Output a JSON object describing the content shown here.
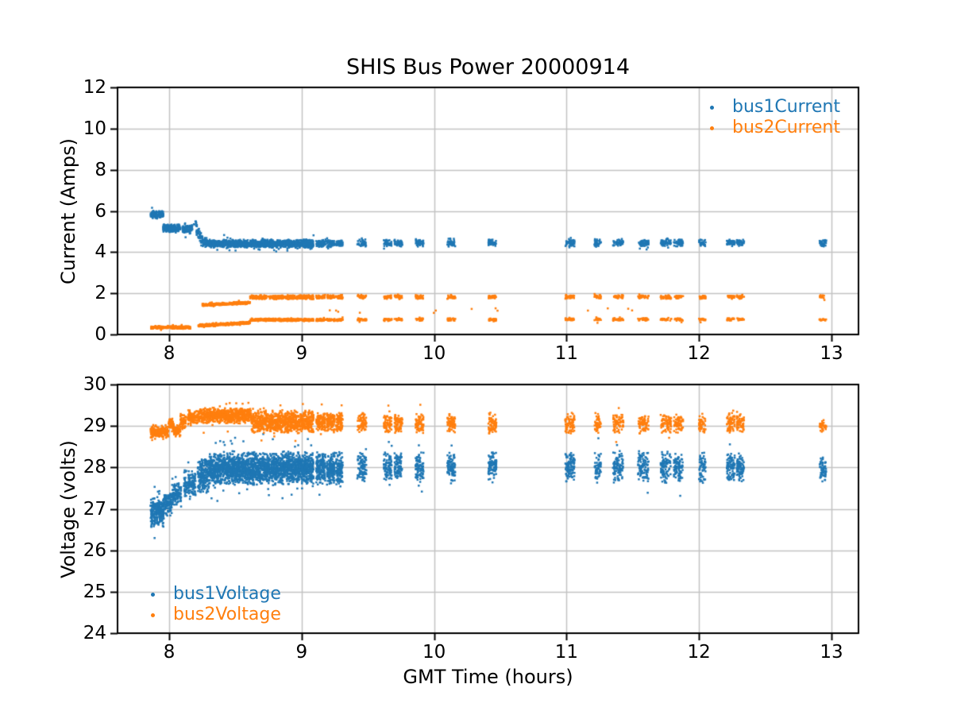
{
  "figure": {
    "background": "#ffffff"
  },
  "style": {
    "grid_color": "#c3c3c3",
    "spine_color": "#000000",
    "tick_color": "#000000",
    "text_color": "#000000",
    "series_blue": "#1f77b4",
    "series_orange": "#ff7f0e"
  },
  "chart_data": [
    {
      "type": "scatter",
      "title": "SHIS Bus Power 20000914",
      "ylabel": "Current (Amps)",
      "xlabel": "",
      "xlim": [
        7.61,
        13.204
      ],
      "ylim": [
        0,
        12
      ],
      "xticks": [
        8,
        9,
        10,
        11,
        12,
        13
      ],
      "xtick_labels": [
        "8",
        "9",
        "10",
        "11",
        "12",
        "13"
      ],
      "yticks": [
        0,
        2,
        4,
        6,
        8,
        10,
        12
      ],
      "ytick_labels": [
        "0",
        "2",
        "4",
        "6",
        "8",
        "10",
        "12"
      ],
      "grid": true,
      "legend": {
        "location": "upper right",
        "entries": [
          {
            "label": "bus1Current",
            "color": "#1f77b4"
          },
          {
            "label": "bus2Current",
            "color": "#ff7f0e"
          }
        ]
      },
      "series": [
        {
          "name": "bus1Current",
          "color": "#1f77b4",
          "marker": "point",
          "segments": [
            [
              7.86,
              7.955,
              5.62,
              6.02,
              160
            ],
            [
              7.955,
              8.085,
              4.93,
              5.38,
              200
            ],
            [
              8.1,
              8.175,
              4.9,
              5.33,
              90
            ],
            [
              8.18,
              8.21,
              5.25,
              5.5,
              8
            ],
            [
              8.205,
              8.24,
              4.75,
              5.35,
              40,
              4.45,
              5.0
            ],
            [
              8.24,
              8.27,
              4.25,
              4.8,
              30
            ],
            [
              8.27,
              9.09,
              4.2,
              4.62,
              1300
            ],
            [
              9.11,
              9.18,
              4.22,
              4.62,
              70
            ],
            [
              9.19,
              9.25,
              4.22,
              4.62,
              60
            ],
            [
              9.26,
              9.31,
              4.22,
              4.62,
              50
            ],
            [
              9.42,
              9.49,
              4.25,
              4.65,
              45
            ],
            [
              9.62,
              9.68,
              4.25,
              4.65,
              45
            ],
            [
              9.7,
              9.76,
              4.25,
              4.65,
              45
            ],
            [
              9.86,
              9.92,
              4.25,
              4.65,
              45
            ],
            [
              10.1,
              10.16,
              4.25,
              4.7,
              45
            ],
            [
              10.41,
              10.47,
              4.25,
              4.65,
              45
            ],
            [
              10.99,
              11.06,
              4.25,
              4.65,
              50
            ],
            [
              11.21,
              11.26,
              4.25,
              4.65,
              35
            ],
            [
              11.35,
              11.43,
              4.25,
              4.65,
              50
            ],
            [
              11.54,
              11.62,
              4.25,
              4.65,
              50
            ],
            [
              11.71,
              11.79,
              4.25,
              4.65,
              50
            ],
            [
              11.81,
              11.88,
              4.25,
              4.65,
              45
            ],
            [
              12.0,
              12.05,
              4.25,
              4.65,
              35
            ],
            [
              12.21,
              12.27,
              4.25,
              4.65,
              45
            ],
            [
              12.285,
              12.34,
              4.25,
              4.65,
              40
            ],
            [
              12.91,
              12.96,
              4.25,
              4.62,
              40
            ]
          ]
        },
        {
          "name": "bus2Current",
          "color": "#ff7f0e",
          "marker": "point",
          "segments": [
            [
              7.86,
              8.16,
              0.27,
              0.42,
              260
            ],
            [
              8.22,
              8.61,
              0.36,
              0.5,
              320,
              0.5,
              0.64
            ],
            [
              8.61,
              9.09,
              0.64,
              0.78,
              380
            ],
            [
              9.11,
              9.18,
              0.64,
              0.78,
              40
            ],
            [
              9.19,
              9.25,
              0.64,
              0.78,
              35
            ],
            [
              9.26,
              9.31,
              0.64,
              0.78,
              30
            ],
            [
              9.42,
              9.49,
              0.65,
              0.8,
              26
            ],
            [
              9.62,
              9.68,
              0.65,
              0.8,
              26
            ],
            [
              9.7,
              9.76,
              0.65,
              0.8,
              26
            ],
            [
              9.86,
              9.92,
              0.65,
              0.8,
              26
            ],
            [
              10.1,
              10.16,
              0.65,
              0.8,
              26
            ],
            [
              10.41,
              10.47,
              0.65,
              0.8,
              26
            ],
            [
              10.99,
              11.06,
              0.65,
              0.8,
              28
            ],
            [
              11.21,
              11.26,
              0.65,
              0.8,
              18
            ],
            [
              11.35,
              11.43,
              0.65,
              0.8,
              26
            ],
            [
              11.54,
              11.62,
              0.65,
              0.8,
              26
            ],
            [
              11.71,
              11.79,
              0.65,
              0.8,
              26
            ],
            [
              11.81,
              11.88,
              0.65,
              0.8,
              24
            ],
            [
              12.0,
              12.05,
              0.65,
              0.8,
              18
            ],
            [
              12.21,
              12.27,
              0.65,
              0.8,
              24
            ],
            [
              12.285,
              12.34,
              0.65,
              0.8,
              22
            ],
            [
              12.91,
              12.96,
              0.66,
              0.78,
              14
            ],
            [
              8.25,
              8.61,
              1.36,
              1.5,
              300,
              1.48,
              1.62
            ],
            [
              8.61,
              9.09,
              1.7,
              1.92,
              380
            ],
            [
              9.11,
              9.18,
              1.72,
              1.93,
              45
            ],
            [
              9.19,
              9.25,
              1.72,
              1.93,
              40
            ],
            [
              9.26,
              9.31,
              1.72,
              1.93,
              35
            ],
            [
              9.42,
              9.49,
              1.72,
              1.93,
              30
            ],
            [
              9.62,
              9.68,
              1.72,
              1.93,
              30
            ],
            [
              9.7,
              9.76,
              1.72,
              1.93,
              30
            ],
            [
              9.86,
              9.92,
              1.72,
              1.93,
              30
            ],
            [
              10.1,
              10.16,
              1.72,
              1.93,
              30
            ],
            [
              10.41,
              10.47,
              1.72,
              1.93,
              30
            ],
            [
              10.99,
              11.06,
              1.72,
              1.93,
              32
            ],
            [
              11.21,
              11.26,
              1.72,
              1.93,
              20
            ],
            [
              11.35,
              11.43,
              1.72,
              1.93,
              30
            ],
            [
              11.54,
              11.62,
              1.72,
              1.93,
              30
            ],
            [
              11.71,
              11.79,
              1.72,
              1.93,
              30
            ],
            [
              11.81,
              11.88,
              1.72,
              1.93,
              28
            ],
            [
              12.0,
              12.05,
              1.72,
              1.93,
              20
            ],
            [
              12.21,
              12.27,
              1.72,
              1.93,
              28
            ],
            [
              12.285,
              12.34,
              1.72,
              1.93,
              26
            ],
            [
              12.91,
              12.96,
              1.74,
              1.92,
              16
            ],
            [
              9.05,
              9.45,
              1.0,
              1.3,
              4
            ],
            [
              9.9,
              10.5,
              1.0,
              1.4,
              5
            ],
            [
              11.1,
              11.65,
              1.05,
              1.35,
              4
            ]
          ]
        }
      ]
    },
    {
      "type": "scatter",
      "title": "",
      "ylabel": "Voltage (volts)",
      "xlabel": "GMT Time (hours)",
      "xlim": [
        7.61,
        13.204
      ],
      "ylim": [
        24,
        30
      ],
      "xticks": [
        8,
        9,
        10,
        11,
        12,
        13
      ],
      "xtick_labels": [
        "8",
        "9",
        "10",
        "11",
        "12",
        "13"
      ],
      "yticks": [
        24,
        25,
        26,
        27,
        28,
        29,
        30
      ],
      "ytick_labels": [
        "24",
        "25",
        "26",
        "27",
        "28",
        "29",
        "30"
      ],
      "grid": true,
      "legend": {
        "location": "lower left",
        "entries": [
          {
            "label": "bus1Voltage",
            "color": "#1f77b4"
          },
          {
            "label": "bus2Voltage",
            "color": "#ff7f0e"
          }
        ]
      },
      "series": [
        {
          "name": "bus1Voltage",
          "color": "#1f77b4",
          "marker": "point",
          "segments": [
            [
              7.86,
              7.96,
              26.55,
              27.3,
              260
            ],
            [
              7.96,
              8.02,
              26.8,
              27.4,
              100
            ],
            [
              8.02,
              8.09,
              27.05,
              27.65,
              130
            ],
            [
              8.11,
              8.2,
              27.25,
              27.95,
              140
            ],
            [
              8.215,
              8.3,
              27.3,
              28.3,
              200
            ],
            [
              8.3,
              9.09,
              27.55,
              28.4,
              2200
            ],
            [
              9.11,
              9.18,
              27.55,
              28.4,
              170
            ],
            [
              9.19,
              9.25,
              27.55,
              28.4,
              150
            ],
            [
              9.26,
              9.31,
              27.55,
              28.4,
              120
            ],
            [
              9.42,
              9.49,
              27.6,
              28.4,
              90
            ],
            [
              9.62,
              9.68,
              27.6,
              28.4,
              90
            ],
            [
              9.7,
              9.76,
              27.6,
              28.4,
              90
            ],
            [
              9.86,
              9.92,
              27.6,
              28.4,
              90
            ],
            [
              10.1,
              10.16,
              27.6,
              28.4,
              90
            ],
            [
              10.41,
              10.47,
              27.6,
              28.4,
              90
            ],
            [
              10.99,
              11.06,
              27.6,
              28.4,
              100
            ],
            [
              11.21,
              11.26,
              27.6,
              28.4,
              60
            ],
            [
              11.35,
              11.43,
              27.6,
              28.4,
              95
            ],
            [
              11.54,
              11.62,
              27.6,
              28.4,
              95
            ],
            [
              11.71,
              11.79,
              27.6,
              28.4,
              95
            ],
            [
              11.81,
              11.88,
              27.6,
              28.4,
              85
            ],
            [
              12.0,
              12.05,
              27.6,
              28.4,
              60
            ],
            [
              12.21,
              12.27,
              27.6,
              28.4,
              85
            ],
            [
              12.285,
              12.34,
              27.6,
              28.4,
              80
            ],
            [
              12.91,
              12.96,
              27.6,
              28.3,
              60
            ]
          ]
        },
        {
          "name": "bus2Voltage",
          "color": "#ff7f0e",
          "marker": "point",
          "segments": [
            [
              7.86,
              7.995,
              28.7,
              29.0,
              200
            ],
            [
              7.995,
              8.035,
              28.85,
              29.25,
              60
            ],
            [
              8.035,
              8.085,
              28.72,
              29.05,
              70
            ],
            [
              8.085,
              8.125,
              28.9,
              29.3,
              60
            ],
            [
              8.14,
              8.23,
              29.0,
              29.4,
              110
            ],
            [
              8.23,
              8.62,
              29.05,
              29.45,
              700
            ],
            [
              8.62,
              9.09,
              28.82,
              29.38,
              900
            ],
            [
              9.11,
              9.18,
              28.85,
              29.35,
              120
            ],
            [
              9.19,
              9.25,
              28.85,
              29.35,
              100
            ],
            [
              9.26,
              9.31,
              28.85,
              29.35,
              90
            ],
            [
              9.42,
              9.49,
              28.8,
              29.32,
              70
            ],
            [
              9.62,
              9.68,
              28.8,
              29.32,
              70
            ],
            [
              9.7,
              9.76,
              28.8,
              29.32,
              70
            ],
            [
              9.86,
              9.92,
              28.8,
              29.32,
              70
            ],
            [
              10.1,
              10.16,
              28.8,
              29.32,
              70
            ],
            [
              10.41,
              10.47,
              28.8,
              29.32,
              70
            ],
            [
              10.99,
              11.06,
              28.8,
              29.32,
              75
            ],
            [
              11.21,
              11.26,
              28.8,
              29.32,
              45
            ],
            [
              11.35,
              11.43,
              28.8,
              29.32,
              72
            ],
            [
              11.54,
              11.62,
              28.8,
              29.32,
              72
            ],
            [
              11.71,
              11.79,
              28.8,
              29.32,
              72
            ],
            [
              11.81,
              11.88,
              28.8,
              29.32,
              65
            ],
            [
              12.0,
              12.05,
              28.8,
              29.32,
              45
            ],
            [
              12.21,
              12.27,
              28.8,
              29.32,
              65
            ],
            [
              12.285,
              12.34,
              28.8,
              29.32,
              60
            ],
            [
              12.91,
              12.96,
              28.85,
              29.15,
              40
            ]
          ]
        }
      ]
    }
  ]
}
